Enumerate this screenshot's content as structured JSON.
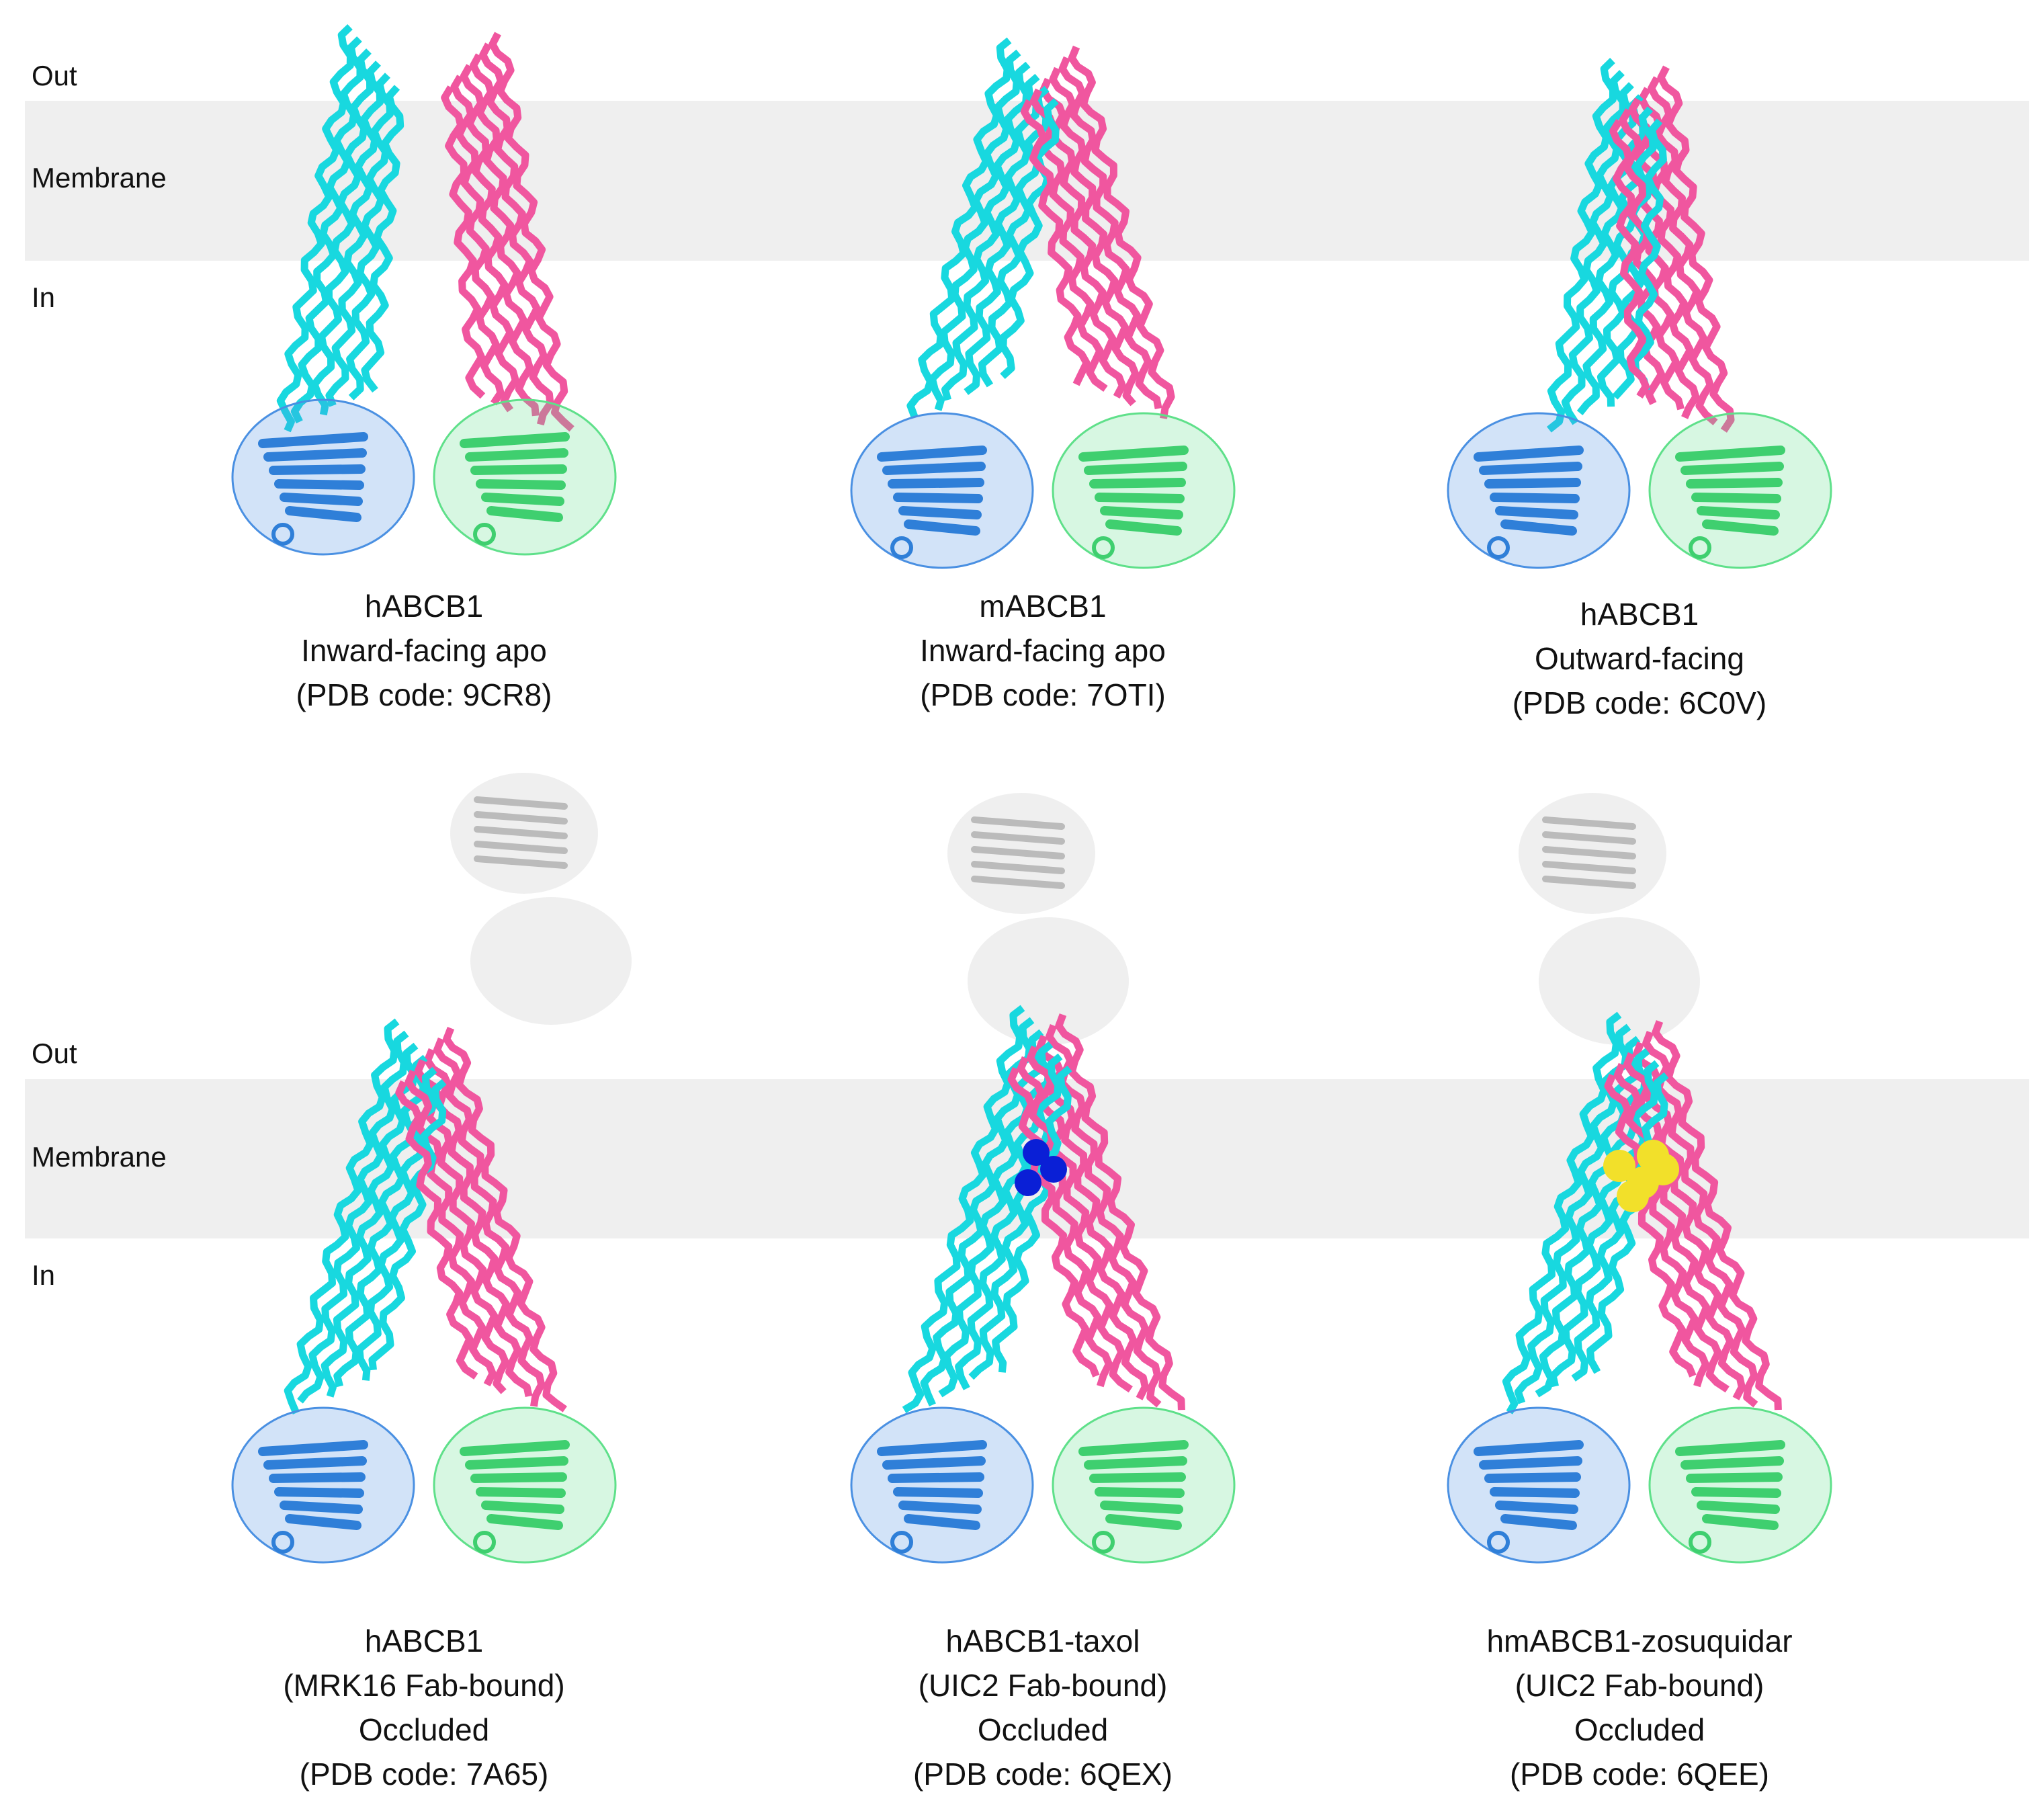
{
  "rows": [
    {
      "labels": {
        "out": "Out",
        "membrane": "Membrane",
        "in": "In"
      },
      "panels": [
        {
          "caption": [
            "hABCB1",
            "Inward-facing  apo",
            "(PDB code: 9CR8)"
          ]
        },
        {
          "caption": [
            "mABCB1",
            "Inward-facing  apo",
            "(PDB code: 7OTI)"
          ]
        },
        {
          "caption": [
            "hABCB1",
            "Outward-facing",
            "(PDB code: 6C0V)"
          ]
        }
      ]
    },
    {
      "labels": {
        "out": "Out",
        "membrane": "Membrane",
        "in": "In"
      },
      "panels": [
        {
          "caption": [
            "hABCB1",
            "(MRK16 Fab-bound)",
            "Occluded",
            "(PDB code: 7A65)"
          ]
        },
        {
          "caption": [
            "hABCB1-taxol",
            "(UIC2 Fab-bound)",
            "Occluded",
            "(PDB code: 6QEX)"
          ]
        },
        {
          "caption": [
            "hmABCB1-zosuquidar",
            "(UIC2 Fab-bound)",
            "Occluded",
            "(PDB code: 6QEE)"
          ]
        }
      ]
    }
  ]
}
